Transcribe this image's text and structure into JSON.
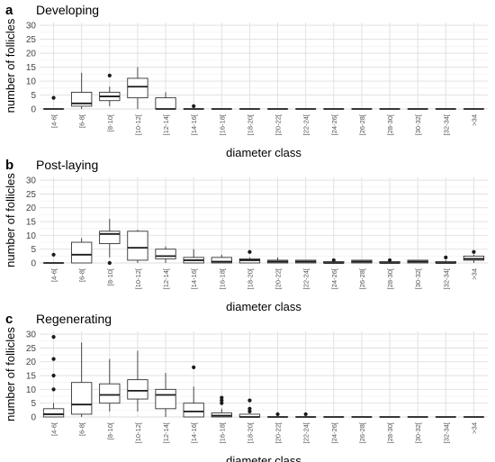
{
  "chart_data": [
    {
      "type": "box",
      "panel": "a",
      "title": "Developing",
      "xlabel": "diameter class",
      "ylabel": "number of follicles",
      "ylim": [
        0,
        31
      ],
      "yticks": [
        0,
        5,
        10,
        15,
        20,
        25,
        30
      ],
      "grid": true,
      "categories": [
        "[4-6[",
        "[6-8[",
        "[8-10[",
        "[10-12[",
        "[12-14[",
        "[14-16[",
        "[16-18[",
        "[18-20[",
        "[20-22[",
        "[22-24[",
        "[24-26[",
        "[26-28[",
        "[28-30[",
        "[30-32[",
        "[32-34[",
        ">34"
      ],
      "boxes": [
        {
          "min": 0,
          "q1": 0,
          "median": 0,
          "q3": 0,
          "max": 0,
          "outliers": [
            4
          ]
        },
        {
          "min": 0,
          "q1": 1,
          "median": 2,
          "q3": 6,
          "max": 13,
          "outliers": []
        },
        {
          "min": 1,
          "q1": 3,
          "median": 4.5,
          "q3": 6,
          "max": 8,
          "outliers": [
            12
          ]
        },
        {
          "min": 0,
          "q1": 4,
          "median": 8,
          "q3": 11,
          "max": 15,
          "outliers": []
        },
        {
          "min": 0,
          "q1": 0,
          "median": 0,
          "q3": 4,
          "max": 6,
          "outliers": []
        },
        {
          "min": 0,
          "q1": 0,
          "median": 0,
          "q3": 0,
          "max": 0,
          "outliers": [
            1
          ]
        },
        {
          "min": 0,
          "q1": 0,
          "median": 0,
          "q3": 0,
          "max": 0,
          "outliers": []
        },
        {
          "min": 0,
          "q1": 0,
          "median": 0,
          "q3": 0,
          "max": 0,
          "outliers": []
        },
        {
          "min": 0,
          "q1": 0,
          "median": 0,
          "q3": 0,
          "max": 0,
          "outliers": []
        },
        {
          "min": 0,
          "q1": 0,
          "median": 0,
          "q3": 0,
          "max": 0,
          "outliers": []
        },
        {
          "min": 0,
          "q1": 0,
          "median": 0,
          "q3": 0,
          "max": 0,
          "outliers": []
        },
        {
          "min": 0,
          "q1": 0,
          "median": 0,
          "q3": 0,
          "max": 0,
          "outliers": []
        },
        {
          "min": 0,
          "q1": 0,
          "median": 0,
          "q3": 0,
          "max": 0,
          "outliers": []
        },
        {
          "min": 0,
          "q1": 0,
          "median": 0,
          "q3": 0,
          "max": 0,
          "outliers": []
        },
        {
          "min": 0,
          "q1": 0,
          "median": 0,
          "q3": 0,
          "max": 0,
          "outliers": []
        },
        {
          "min": 0,
          "q1": 0,
          "median": 0,
          "q3": 0,
          "max": 0,
          "outliers": []
        }
      ]
    },
    {
      "type": "box",
      "panel": "b",
      "title": "Post-laying",
      "xlabel": "diameter class",
      "ylabel": "number of follicles",
      "ylim": [
        0,
        31
      ],
      "yticks": [
        0,
        5,
        10,
        15,
        20,
        25,
        30
      ],
      "grid": true,
      "categories": [
        "[4-6[",
        "[6-8[",
        "[8-10[",
        "[10-12[",
        "[12-14[",
        "[14-16[",
        "[16-18[",
        "[18-20[",
        "[20-22[",
        "[22-24[",
        "[24-26[",
        "[26-28[",
        "[28-30[",
        "[30-32[",
        "[32-34[",
        ">34"
      ],
      "boxes": [
        {
          "min": 0,
          "q1": 0,
          "median": 0,
          "q3": 0,
          "max": 0,
          "outliers": [
            3
          ]
        },
        {
          "min": 0,
          "q1": 0,
          "median": 3,
          "q3": 7.5,
          "max": 9,
          "outliers": []
        },
        {
          "min": 2,
          "q1": 7,
          "median": 10.5,
          "q3": 11.5,
          "max": 16,
          "outliers": [
            0
          ]
        },
        {
          "min": 0,
          "q1": 1,
          "median": 5.5,
          "q3": 11.5,
          "max": 12,
          "outliers": []
        },
        {
          "min": 0,
          "q1": 1.5,
          "median": 2.5,
          "q3": 5,
          "max": 6,
          "outliers": []
        },
        {
          "min": 0,
          "q1": 0,
          "median": 1,
          "q3": 2,
          "max": 5,
          "outliers": []
        },
        {
          "min": 0,
          "q1": 0,
          "median": 0.5,
          "q3": 2,
          "max": 3,
          "outliers": []
        },
        {
          "min": 0,
          "q1": 0,
          "median": 1,
          "q3": 1.5,
          "max": 2,
          "outliers": [
            4
          ]
        },
        {
          "min": 0,
          "q1": 0,
          "median": 0.5,
          "q3": 1,
          "max": 2,
          "outliers": []
        },
        {
          "min": 0,
          "q1": 0,
          "median": 0.5,
          "q3": 1,
          "max": 1,
          "outliers": []
        },
        {
          "min": 0,
          "q1": 0,
          "median": 0,
          "q3": 0.5,
          "max": 1,
          "outliers": [
            1
          ]
        },
        {
          "min": 0,
          "q1": 0,
          "median": 0.5,
          "q3": 1,
          "max": 1,
          "outliers": []
        },
        {
          "min": 0,
          "q1": 0,
          "median": 0,
          "q3": 0.5,
          "max": 1,
          "outliers": [
            1
          ]
        },
        {
          "min": 0,
          "q1": 0,
          "median": 0.5,
          "q3": 1,
          "max": 1,
          "outliers": []
        },
        {
          "min": 0,
          "q1": 0,
          "median": 0,
          "q3": 0.5,
          "max": 1,
          "outliers": [
            2
          ]
        },
        {
          "min": 0,
          "q1": 1,
          "median": 1.5,
          "q3": 2.5,
          "max": 3,
          "outliers": [
            4
          ]
        }
      ]
    },
    {
      "type": "box",
      "panel": "c",
      "title": "Regenerating",
      "xlabel": "diameter class",
      "ylabel": "number of follicles",
      "ylim": [
        0,
        31
      ],
      "yticks": [
        0,
        5,
        10,
        15,
        20,
        25,
        30
      ],
      "grid": true,
      "categories": [
        "[4-6[",
        "[6-8[",
        "[8-10[",
        "[10-12[",
        "[12-14[",
        "[14-16[",
        "[16-18[",
        "[18-20[",
        "[20-22[",
        "[22-24[",
        "[24-26[",
        "[26-28[",
        "[28-30[",
        "[30-32[",
        "[32-34[",
        ">34"
      ],
      "boxes": [
        {
          "min": 0,
          "q1": 0,
          "median": 1,
          "q3": 3,
          "max": 5,
          "outliers": [
            10,
            15,
            21,
            29
          ]
        },
        {
          "min": 0,
          "q1": 1,
          "median": 4.5,
          "q3": 12.5,
          "max": 27,
          "outliers": []
        },
        {
          "min": 2,
          "q1": 5,
          "median": 8,
          "q3": 12,
          "max": 21,
          "outliers": []
        },
        {
          "min": 2,
          "q1": 6.5,
          "median": 9.5,
          "q3": 13.5,
          "max": 24,
          "outliers": []
        },
        {
          "min": 0,
          "q1": 3,
          "median": 8,
          "q3": 10,
          "max": 16,
          "outliers": []
        },
        {
          "min": 0,
          "q1": 0,
          "median": 2,
          "q3": 5,
          "max": 11,
          "outliers": [
            18
          ]
        },
        {
          "min": 0,
          "q1": 0,
          "median": 0.5,
          "q3": 1.5,
          "max": 3,
          "outliers": [
            5,
            6,
            7
          ]
        },
        {
          "min": 0,
          "q1": 0,
          "median": 0,
          "q3": 1,
          "max": 1,
          "outliers": [
            2,
            3,
            6
          ]
        },
        {
          "min": 0,
          "q1": 0,
          "median": 0,
          "q3": 0,
          "max": 0,
          "outliers": [
            1
          ]
        },
        {
          "min": 0,
          "q1": 0,
          "median": 0,
          "q3": 0,
          "max": 0,
          "outliers": [
            1
          ]
        },
        {
          "min": 0,
          "q1": 0,
          "median": 0,
          "q3": 0,
          "max": 0,
          "outliers": []
        },
        {
          "min": 0,
          "q1": 0,
          "median": 0,
          "q3": 0,
          "max": 0,
          "outliers": []
        },
        {
          "min": 0,
          "q1": 0,
          "median": 0,
          "q3": 0,
          "max": 0,
          "outliers": []
        },
        {
          "min": 0,
          "q1": 0,
          "median": 0,
          "q3": 0,
          "max": 0,
          "outliers": []
        },
        {
          "min": 0,
          "q1": 0,
          "median": 0,
          "q3": 0,
          "max": 0,
          "outliers": []
        },
        {
          "min": 0,
          "q1": 0,
          "median": 0,
          "q3": 0,
          "max": 0,
          "outliers": []
        }
      ]
    }
  ]
}
